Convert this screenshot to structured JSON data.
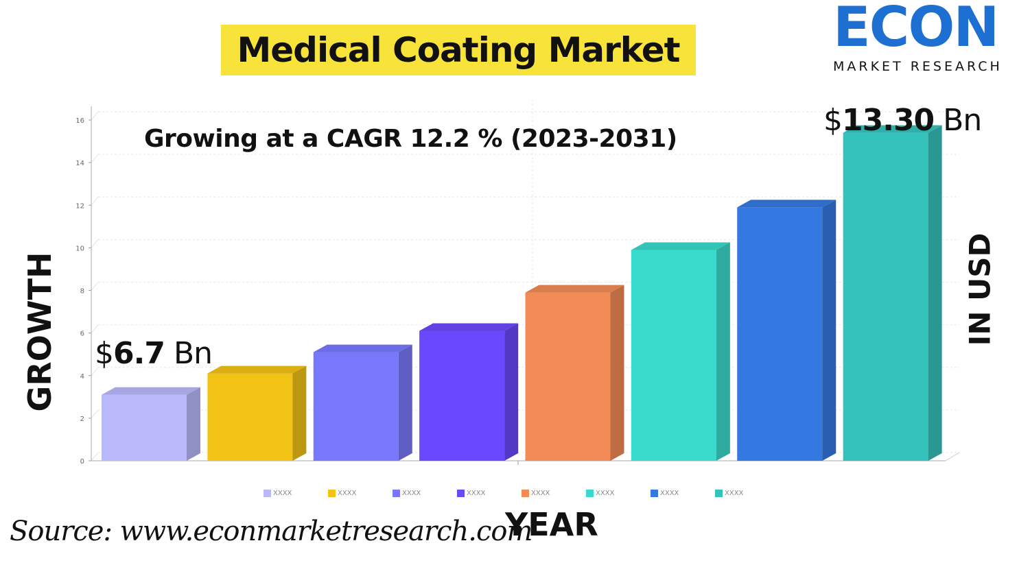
{
  "header": {
    "title": "Medical Coating Market"
  },
  "logo": {
    "word": "ECON",
    "subtitle": "MARKET RESEARCH"
  },
  "chart_data": {
    "type": "bar",
    "subtitle": "Growing at a CAGR 12.2 % (2023-2031)",
    "ylabel": "GROWTH",
    "y2label": "IN USD",
    "xlabel": "YEAR",
    "ylim": [
      0,
      17
    ],
    "yticks": [
      0,
      2,
      4,
      6,
      8,
      10,
      12,
      14,
      16
    ],
    "categories": [
      "XXXX",
      "XXXX",
      "XXXX",
      "XXXX",
      "XXXX",
      "XXXX",
      "XXXX",
      "XXXX"
    ],
    "values": [
      3.1,
      4.1,
      5.1,
      6.1,
      7.9,
      9.9,
      11.9,
      15.4
    ],
    "colors": [
      "#b9b8fb",
      "#f2c214",
      "#7878fd",
      "#6a48fd",
      "#f28b56",
      "#38dbcb",
      "#3479e2",
      "#36c2bc"
    ],
    "grid": true,
    "legend_position": "bottom",
    "annotations": {
      "start": {
        "prefix": "$",
        "value": "6.7",
        "unit": " Bn"
      },
      "end": {
        "prefix": "$",
        "value": "13.30",
        "unit": " Bn"
      }
    }
  },
  "source": "Source:  www.econmarketresearch.com"
}
